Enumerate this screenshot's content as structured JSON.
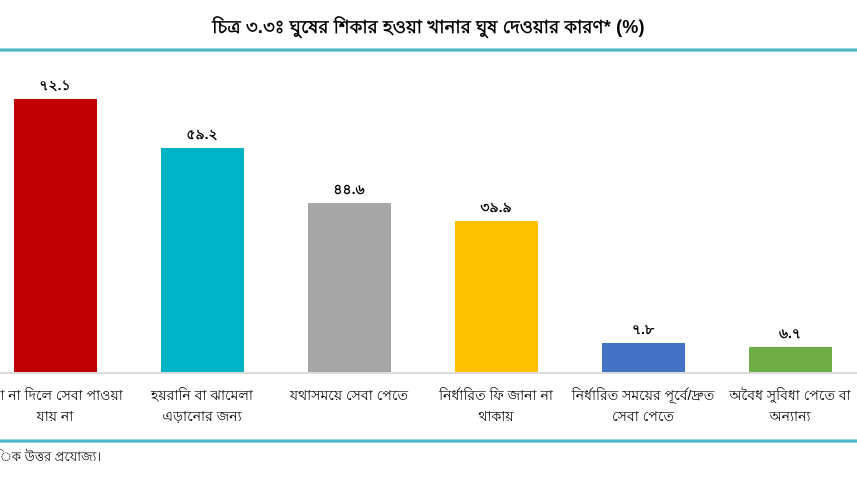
{
  "figure": {
    "title": "চিত্র ৩.৩ঃ ঘুষের শিকার হওয়া খানার ঘুষ দেওয়ার কারণ* (%)",
    "footnote": "িক উত্তর প্রযোজ্য।"
  },
  "chart_data": {
    "type": "bar",
    "title": "চিত্র ৩.৩ঃ ঘুষের শিকার হওয়া খানার ঘুষ দেওয়ার কারণ* (%)",
    "xlabel": "",
    "ylabel": "",
    "unit": "%",
    "ylim": [
      0,
      80
    ],
    "grid": false,
    "legend": "none",
    "y_axis_visible": false,
    "categories": [
      "া না দিলে সেবা পাওয়া যায় না",
      "হয়রানি বা ঝামেলা এড়ানোর জন্য",
      "যথাসময়ে সেবা পেতে",
      "নির্ধারিত ফি জানা না থাকায়",
      "নির্ধারিত সময়ের পূর্বে/দ্রুত সেবা পেতে",
      "অবৈধ সুবিধা পেতে বা অন্যান্য"
    ],
    "category_lines": [
      [
        "া না দিলে সেবা পাওয়া",
        "যায় না"
      ],
      [
        "হয়রানি বা ঝামেলা",
        "এড়ানোর জন্য"
      ],
      [
        "যথাসময়ে সেবা পেতে"
      ],
      [
        "নির্ধারিত ফি জানা না",
        "থাকায়"
      ],
      [
        "নির্ধারিত সময়ের পূর্বে/দ্রুত",
        "সেবা পেতে"
      ],
      [
        "অবৈধ সুবিধা পেতে বা",
        "অন্যান্য"
      ]
    ],
    "values": [
      72.1,
      59.2,
      44.6,
      39.9,
      7.8,
      6.7
    ],
    "value_labels": [
      "৭২.১",
      "৫৯.২",
      "৪৪.৬",
      "৩৯.৯",
      "৭.৮",
      "৬.৭"
    ],
    "bar_colors": [
      "#C00000",
      "#00B4C5",
      "#A6A6A6",
      "#FFC000",
      "#4472C4",
      "#70AD47"
    ],
    "accent_rule_color": "#4FB9C7",
    "axis_line_color": "#DCDCDC",
    "first_category_clipped_left": true,
    "footnote_clipped_left": true
  }
}
